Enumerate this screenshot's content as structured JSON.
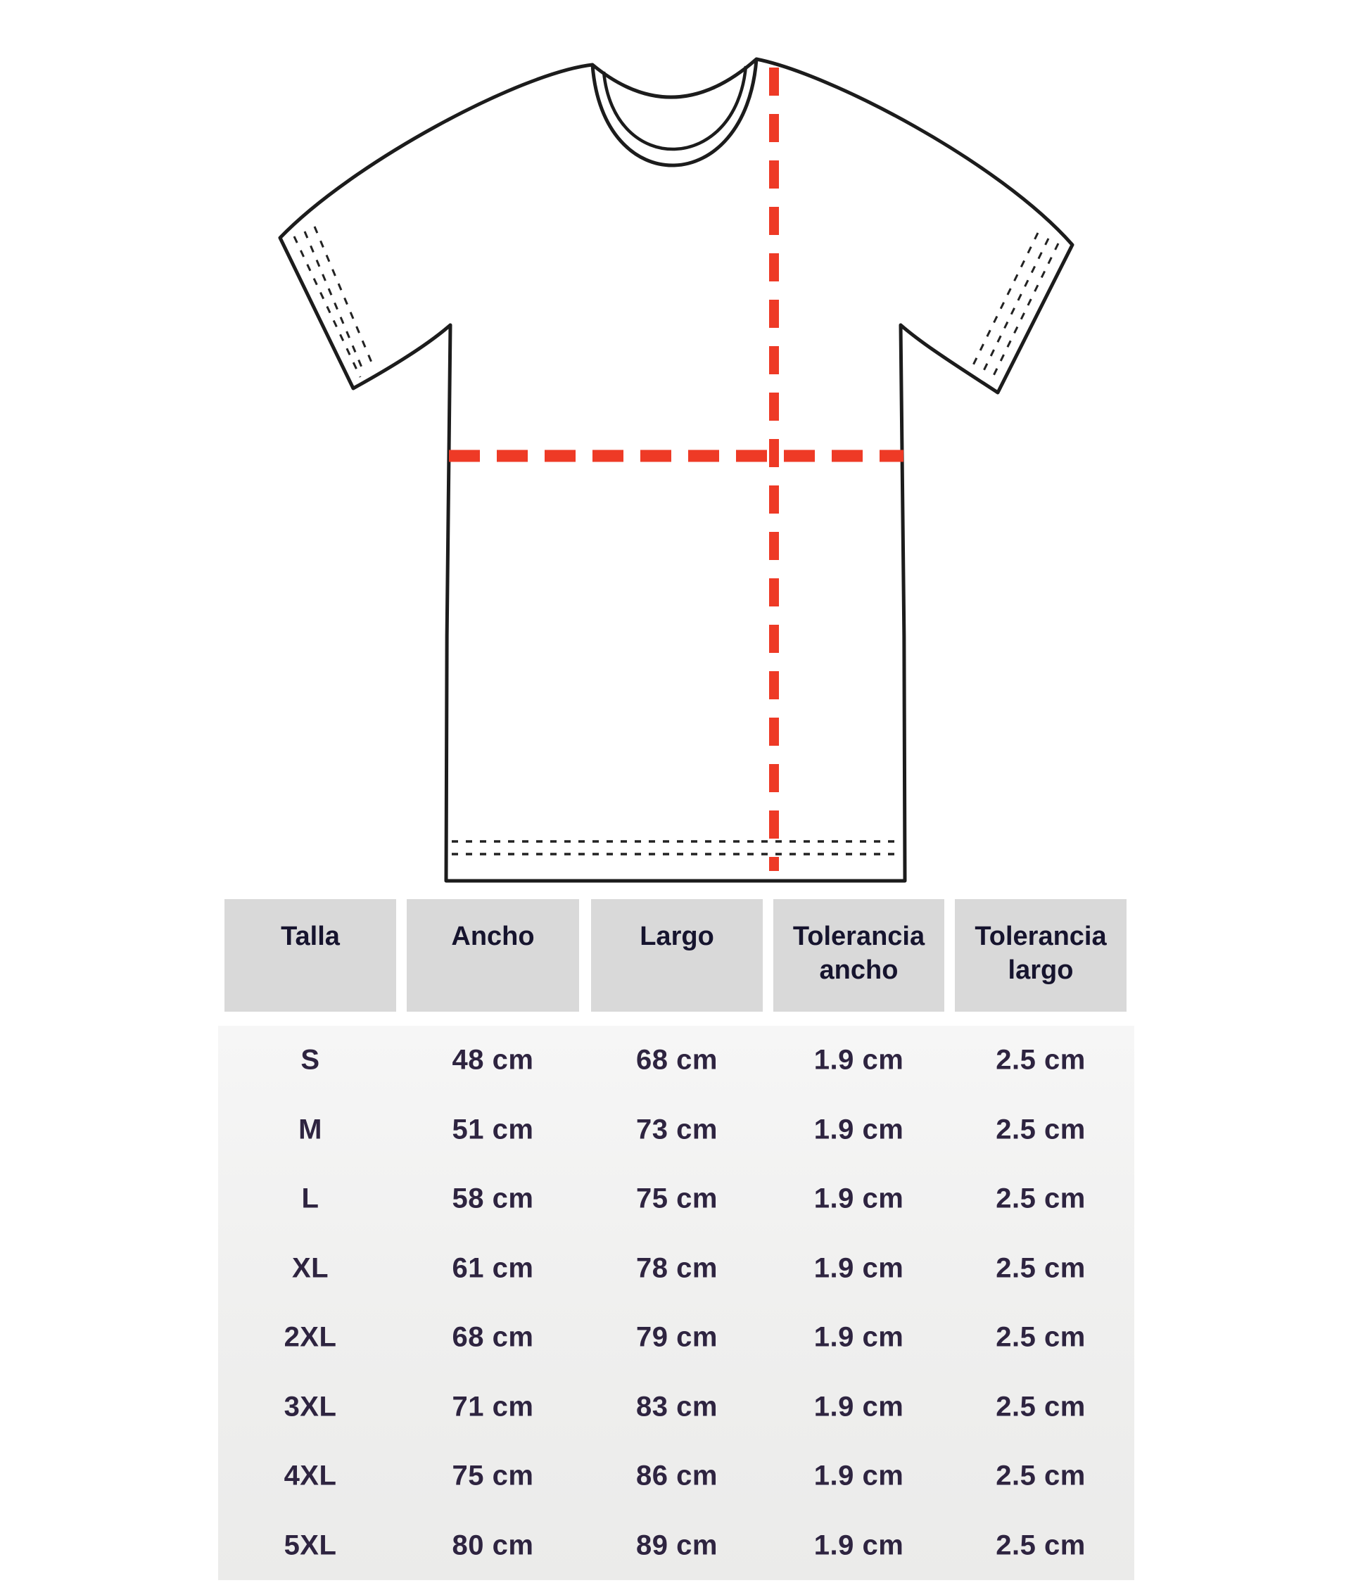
{
  "diagram": {
    "subject": "t-shirt front outline with measurement guides",
    "outline_color": "#1c1c1c",
    "measure_line_color": "#ee3a26",
    "measure_lines": [
      "largo-vertical",
      "ancho-horizontal"
    ]
  },
  "size_chart": {
    "columns": [
      {
        "key": "talla",
        "label": "Talla"
      },
      {
        "key": "ancho",
        "label": "Ancho"
      },
      {
        "key": "largo",
        "label": "Largo"
      },
      {
        "key": "tol_ancho",
        "label": "Tolerancia ancho"
      },
      {
        "key": "tol_largo",
        "label": "Tolerancia largo"
      }
    ],
    "rows": [
      {
        "talla": "S",
        "ancho": "48 cm",
        "largo": "68 cm",
        "tol_ancho": "1.9 cm",
        "tol_largo": "2.5 cm"
      },
      {
        "talla": "M",
        "ancho": "51 cm",
        "largo": "73 cm",
        "tol_ancho": "1.9 cm",
        "tol_largo": "2.5 cm"
      },
      {
        "talla": "L",
        "ancho": "58 cm",
        "largo": "75 cm",
        "tol_ancho": "1.9 cm",
        "tol_largo": "2.5 cm"
      },
      {
        "talla": "XL",
        "ancho": "61 cm",
        "largo": "78 cm",
        "tol_ancho": "1.9 cm",
        "tol_largo": "2.5 cm"
      },
      {
        "talla": "2XL",
        "ancho": "68 cm",
        "largo": "79 cm",
        "tol_ancho": "1.9 cm",
        "tol_largo": "2.5 cm"
      },
      {
        "talla": "3XL",
        "ancho": "71 cm",
        "largo": "83 cm",
        "tol_ancho": "1.9 cm",
        "tol_largo": "2.5 cm"
      },
      {
        "talla": "4XL",
        "ancho": "75 cm",
        "largo": "86 cm",
        "tol_ancho": "1.9 cm",
        "tol_largo": "2.5 cm"
      },
      {
        "talla": "5XL",
        "ancho": "80 cm",
        "largo": "89 cm",
        "tol_ancho": "1.9 cm",
        "tol_largo": "2.5 cm"
      }
    ]
  }
}
